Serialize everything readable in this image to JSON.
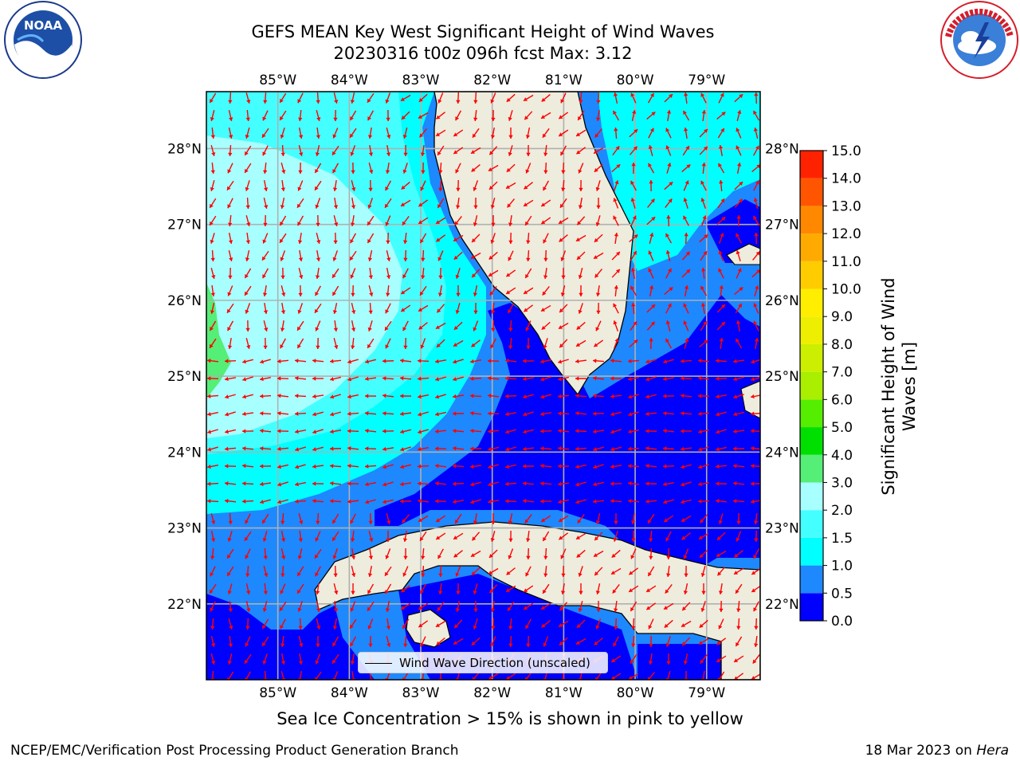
{
  "title_line1": "GEFS MEAN Key West Significant Height of Wind Waves",
  "title_line2": "20230316 t00z 096h fcst   Max: 3.12",
  "note": "Sea Ice Concentration > 15% is shown in pink to yellow",
  "credit_left": "NCEP/EMC/Verification Post Processing Product Generation Branch",
  "credit_right_date": "18 Mar 2023 on ",
  "credit_right_machine": "Hera",
  "legend_label": "Wind Wave Direction (unscaled)",
  "colorbar_title": "Significant Height of Wind Waves [m]",
  "logos": {
    "left": "noaa-logo",
    "right": "national-weather-service-logo"
  },
  "map": {
    "lon_ticks": [
      "85°W",
      "84°W",
      "83°W",
      "82°W",
      "81°W",
      "80°W",
      "79°W"
    ],
    "lat_ticks": [
      "28°N",
      "27°N",
      "26°N",
      "25°N",
      "24°N",
      "23°N",
      "22°N"
    ],
    "lon_values": [
      -85,
      -84,
      -83,
      -82,
      -81,
      -80,
      -79
    ],
    "lat_values": [
      28,
      27,
      26,
      25,
      24,
      23,
      22
    ],
    "extent": {
      "lon_min": -86.0,
      "lon_max": -78.25,
      "lat_min": 21.0,
      "lat_max": 28.75
    },
    "grid": true,
    "land_color": "#eeecdd",
    "vector_color": "#ff0000",
    "coast_color": "#000000"
  },
  "colorbar": {
    "levels": [
      0.0,
      0.5,
      1.0,
      1.5,
      2.0,
      3.0,
      4.0,
      5.0,
      6.0,
      7.0,
      8.0,
      9.0,
      10.0,
      11.0,
      12.0,
      13.0,
      14.0,
      15.0
    ],
    "tick_labels": [
      "0.0",
      "0.5",
      "1.0",
      "1.5",
      "2.0",
      "3.0",
      "4.0",
      "5.0",
      "6.0",
      "7.0",
      "8.0",
      "9.0",
      "10.0",
      "11.0",
      "12.0",
      "13.0",
      "14.0",
      "15.0"
    ],
    "colors": [
      "#0000ff",
      "#1e88ff",
      "#00ffff",
      "#44ffff",
      "#a8ffff",
      "#55ee77",
      "#00e000",
      "#55ee00",
      "#aaee00",
      "#ccee00",
      "#eeee00",
      "#ffee00",
      "#ffcc00",
      "#ffaa00",
      "#ff8800",
      "#ff5500",
      "#ff2200"
    ]
  }
}
